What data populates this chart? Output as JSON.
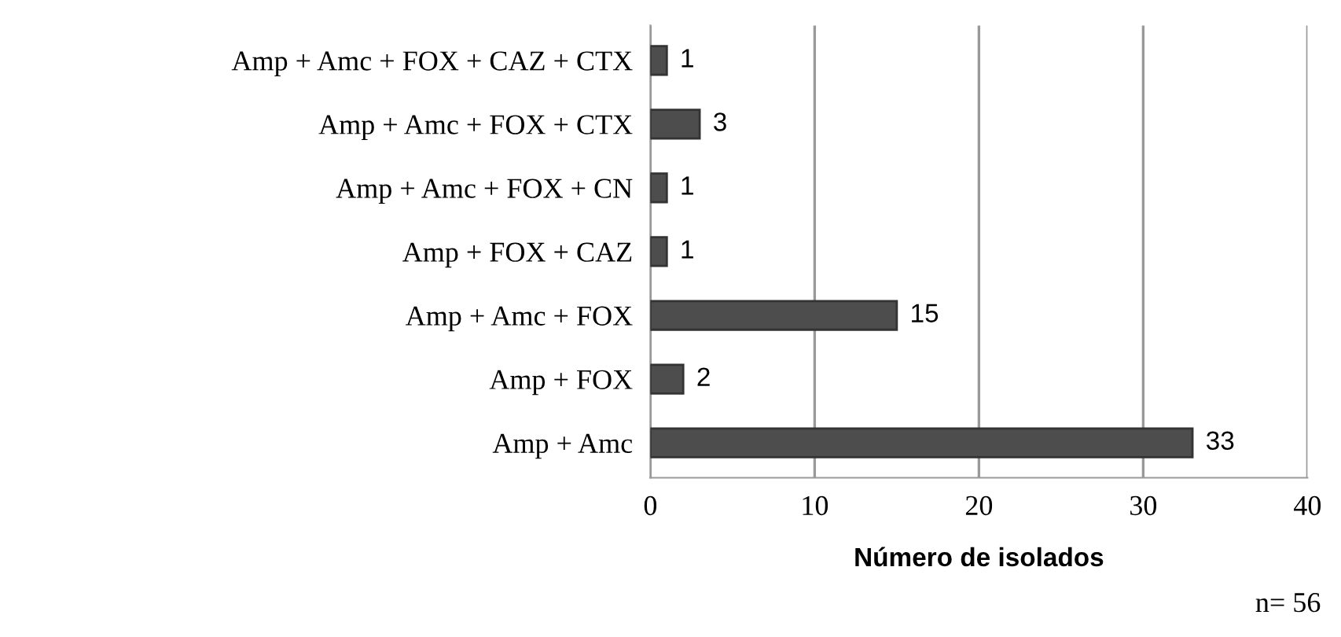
{
  "chart_data": {
    "type": "bar",
    "orientation": "horizontal",
    "xlabel": "Número de isolados",
    "categories": [
      "Amp + Amc + FOX + CAZ + CTX",
      "Amp + Amc + FOX + CTX",
      "Amp + Amc + FOX + CN",
      "Amp + FOX + CAZ",
      "Amp + Amc + FOX",
      "Amp + FOX",
      "Amp + Amc"
    ],
    "values": [
      1,
      3,
      1,
      1,
      15,
      2,
      33
    ],
    "color": "#4d4d4d",
    "xlim": [
      0,
      40
    ],
    "xticks": [
      0,
      10,
      20,
      30,
      40
    ],
    "grid": "x",
    "data_labels": true,
    "annotations": [
      "n= 56"
    ]
  }
}
